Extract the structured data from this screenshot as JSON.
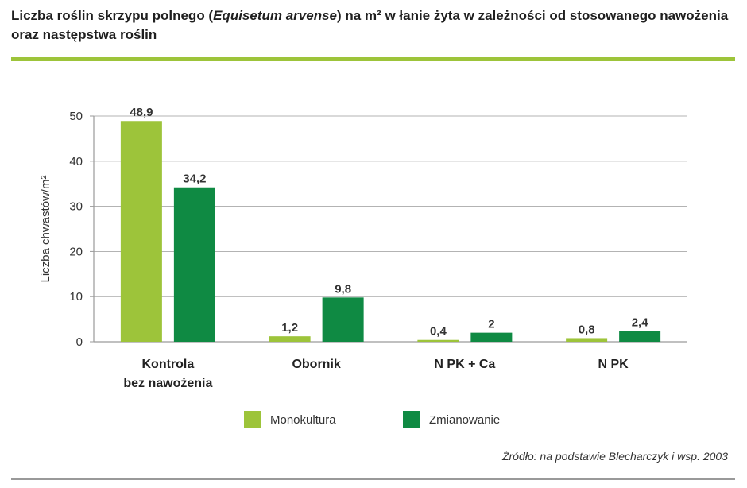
{
  "title": {
    "part1": "Liczba roślin skrzypu polnego (",
    "species": "Equisetum arvense",
    "part2": ") na m² w łanie żyta w zależności od stosowanego nawożenia oraz następstwa roślin"
  },
  "source": "Źródło: na podstawie Blecharczyk i wsp. 2003",
  "colors": {
    "accent": "#9dc43a",
    "monokultura": "#9dc43a",
    "zmianowanie": "#0f8a43",
    "grid": "#9a9a9a"
  },
  "chart_data": {
    "type": "bar",
    "categories": [
      [
        "Kontrola",
        "bez nawożenia"
      ],
      [
        "Obornik"
      ],
      [
        "N PK + Ca"
      ],
      [
        "N PK"
      ]
    ],
    "series": [
      {
        "name": "Monokultura",
        "values": [
          48.9,
          1.2,
          0.4,
          0.8
        ],
        "labels": [
          "48,9",
          "1,2",
          "0,4",
          "0,8"
        ],
        "color": "#9dc43a"
      },
      {
        "name": "Zmianowanie",
        "values": [
          34.2,
          9.8,
          2,
          2.4
        ],
        "labels": [
          "34,2",
          "9,8",
          "2",
          "2,4"
        ],
        "color": "#0f8a43"
      }
    ],
    "ylabel": "Liczba chwastów/m²",
    "xlabel": "",
    "ylim": [
      0,
      50
    ],
    "yticks": [
      0,
      10,
      20,
      30,
      40,
      50
    ],
    "grid": true,
    "legend": "bottom"
  }
}
